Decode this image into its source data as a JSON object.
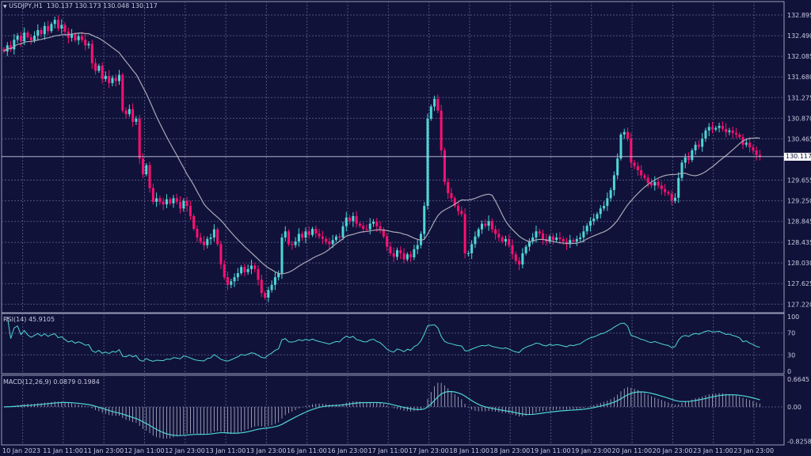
{
  "header": {
    "symbol": "USDJPY,H1",
    "ohlc": "130.137 130.173 130.048 130.117",
    "menu_icon": "triangle-down-icon"
  },
  "rsi_label": "RSI(14) 45.9105",
  "macd_label": "MACD(12,26,9) 0.0879 0.1984",
  "current_price": "130.117",
  "colors": {
    "background": "#10123a",
    "bull": "#4fd6d6",
    "bear": "#ff1070",
    "ma": "#a9a9b5",
    "indicator": "#4fd6d6",
    "grid": "#4e5380"
  },
  "chart_data": [
    {
      "type": "candlestick",
      "title": "USDJPY,H1",
      "ylim": [
        127.0,
        133.1
      ],
      "yticks": [
        "132.895",
        "132.490",
        "132.085",
        "131.680",
        "131.275",
        "130.870",
        "130.465",
        "129.655",
        "129.250",
        "128.845",
        "128.435",
        "128.030",
        "127.625",
        "127.220"
      ],
      "xticks": [
        "10 Jan 2023",
        "11 Jan 11:00",
        "11 Jan 23:00",
        "12 Jan 11:00",
        "12 Jan 23:00",
        "13 Jan 11:00",
        "13 Jan 23:00",
        "16 Jan 11:00",
        "16 Jan 23:00",
        "17 Jan 11:00",
        "17 Jan 23:00",
        "18 Jan 11:00",
        "18 Jan 23:00",
        "19 Jan 11:00",
        "19 Jan 23:00",
        "20 Jan 11:00",
        "20 Jan 23:00",
        "23 Jan 11:00",
        "23 Jan 23:00"
      ],
      "grid": true,
      "moving_average_period": 20,
      "closes": [
        132.18,
        132.3,
        132.22,
        132.41,
        132.49,
        132.38,
        132.55,
        132.46,
        132.4,
        132.49,
        132.6,
        132.52,
        132.68,
        132.58,
        132.72,
        132.8,
        132.63,
        132.7,
        132.57,
        132.45,
        132.52,
        132.4,
        132.48,
        132.41,
        132.3,
        132.33,
        131.95,
        131.8,
        131.9,
        131.64,
        131.7,
        131.56,
        131.66,
        131.6,
        131.72,
        131.02,
        130.95,
        131.05,
        130.8,
        130.86,
        130.08,
        129.77,
        129.95,
        129.5,
        129.23,
        129.3,
        129.23,
        129.18,
        129.28,
        129.2,
        129.3,
        129.23,
        129.1,
        129.25,
        129.15,
        128.95,
        128.7,
        128.53,
        128.45,
        128.38,
        128.5,
        128.53,
        128.69,
        128.4,
        128.0,
        127.75,
        127.6,
        127.67,
        127.75,
        127.83,
        127.95,
        127.85,
        127.91,
        127.98,
        127.91,
        127.7,
        127.44,
        127.35,
        127.5,
        127.6,
        127.75,
        127.83,
        128.53,
        128.65,
        128.4,
        128.38,
        128.45,
        128.6,
        128.53,
        128.65,
        128.58,
        128.7,
        128.61,
        128.55,
        128.5,
        128.45,
        128.4,
        128.48,
        128.55,
        128.53,
        128.75,
        128.92,
        128.85,
        128.95,
        128.8,
        128.76,
        128.7,
        128.69,
        128.8,
        128.84,
        128.75,
        128.69,
        128.55,
        128.35,
        128.22,
        128.15,
        128.28,
        128.22,
        128.1,
        128.2,
        128.14,
        128.3,
        128.38,
        128.6,
        129.15,
        130.86,
        131.1,
        131.25,
        131.02,
        130.24,
        129.62,
        129.4,
        129.3,
        129.15,
        129.05,
        128.99,
        128.22,
        128.22,
        128.4,
        128.55,
        128.69,
        128.8,
        128.76,
        128.85,
        128.69,
        128.6,
        128.53,
        128.45,
        128.5,
        128.38,
        128.2,
        128.07,
        128.0,
        128.22,
        128.35,
        128.45,
        128.53,
        128.65,
        128.61,
        128.5,
        128.45,
        128.55,
        128.48,
        128.53,
        128.5,
        128.45,
        128.4,
        128.48,
        128.45,
        128.5,
        128.53,
        128.65,
        128.76,
        128.85,
        128.9,
        128.99,
        129.1,
        129.15,
        129.3,
        129.46,
        129.75,
        130.08,
        130.55,
        130.6,
        130.47,
        130.0,
        129.93,
        129.85,
        129.75,
        129.7,
        129.6,
        129.55,
        129.62,
        129.55,
        129.48,
        129.42,
        129.39,
        129.25,
        129.31,
        129.7,
        130.0,
        130.1,
        130.05,
        130.24,
        130.35,
        130.31,
        130.47,
        130.63,
        130.7,
        130.65,
        130.68,
        130.72,
        130.66,
        130.6,
        130.63,
        130.58,
        130.55,
        130.5,
        130.35,
        130.39,
        130.3,
        130.24,
        130.15,
        130.117
      ]
    },
    {
      "type": "line",
      "title": "RSI(14) 45.9105",
      "ylim": [
        0,
        100
      ],
      "yticks": [
        "100",
        "70",
        "30",
        "0"
      ]
    },
    {
      "type": "bar+line",
      "title": "MACD(12,26,9) 0.0879 0.1984",
      "ylim": [
        -0.8258,
        0.6645
      ],
      "yticks": [
        "0.6645",
        "0.00",
        "-0.8258"
      ]
    }
  ]
}
